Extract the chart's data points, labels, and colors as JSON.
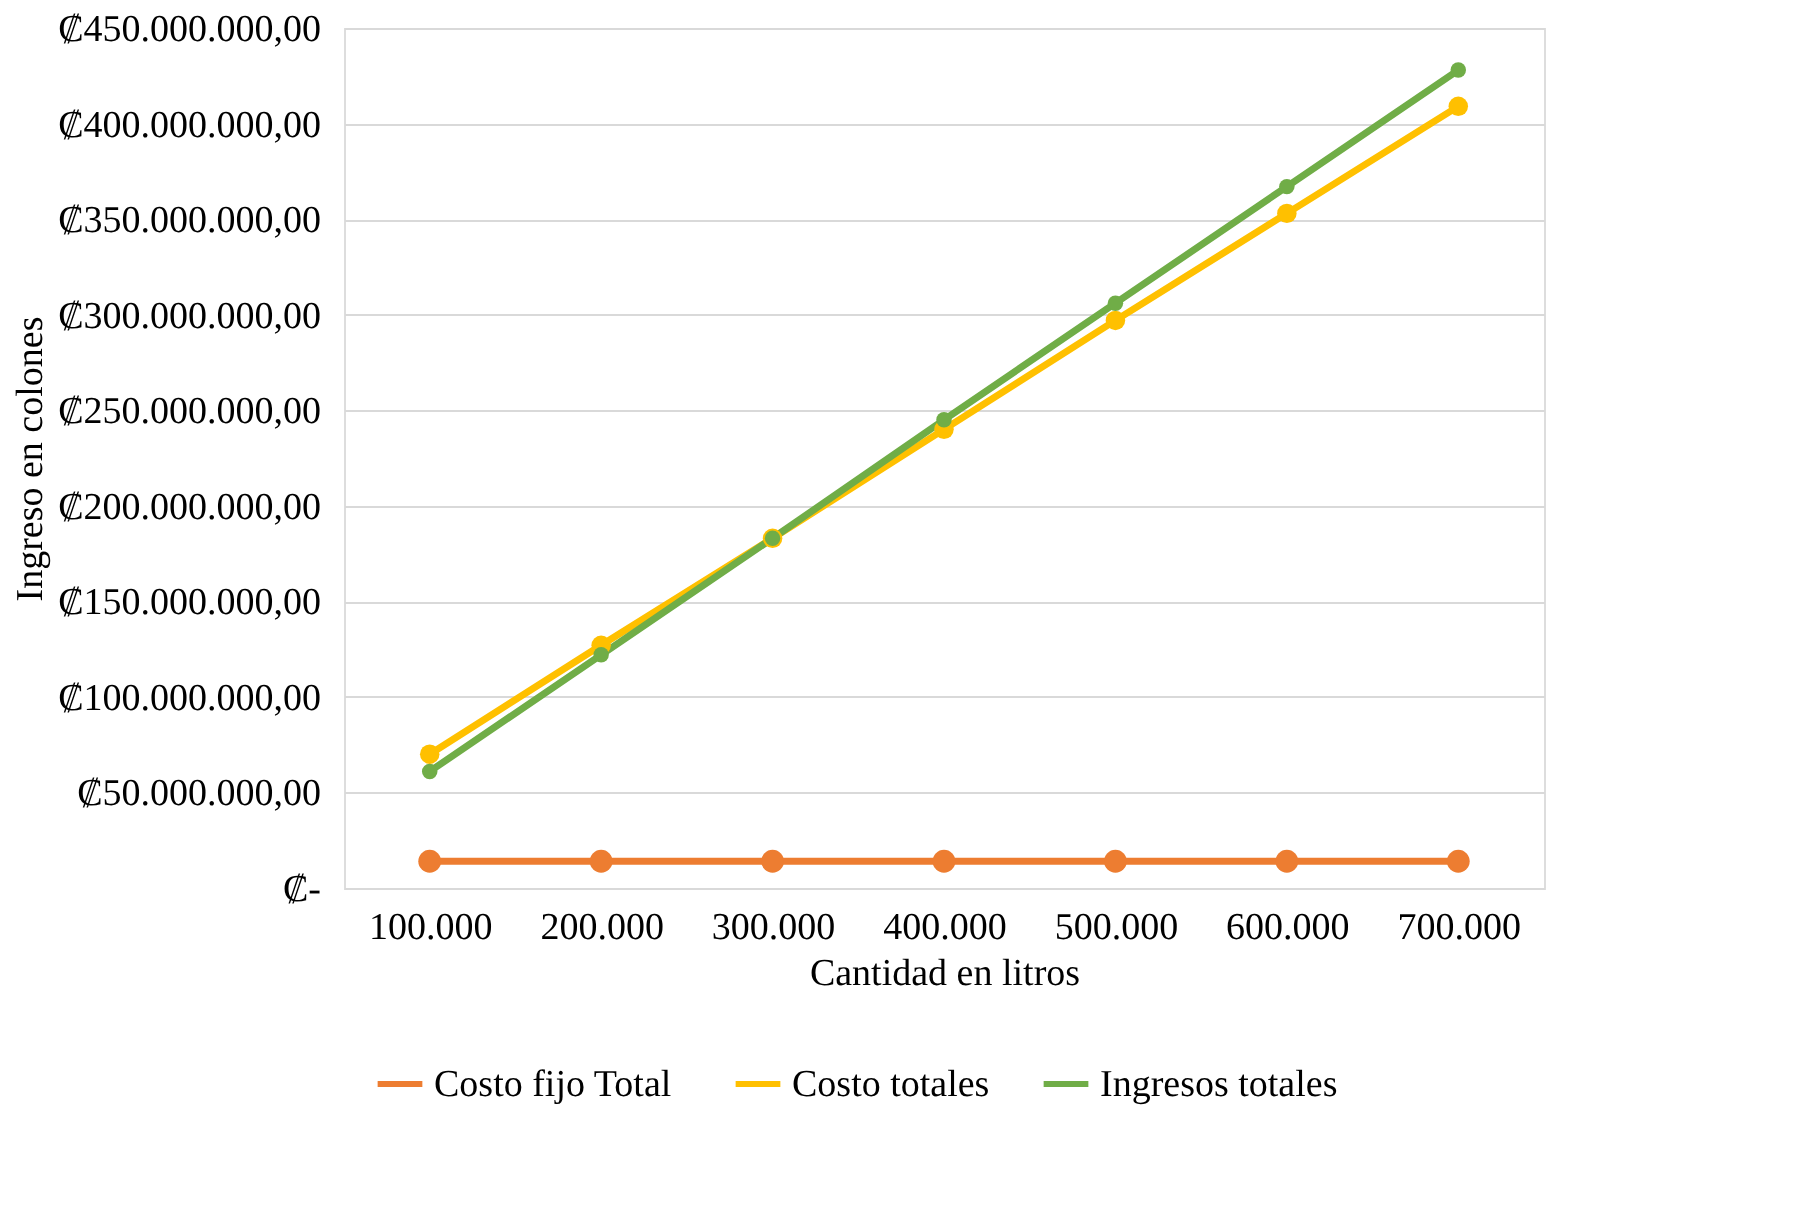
{
  "chart_data": {
    "type": "line",
    "xlabel": "Cantidad en litros",
    "ylabel": "Ingreso en colones",
    "categories": [
      "100.000",
      "200.000",
      "300.000",
      "400.000",
      "500.000",
      "600.000",
      "700.000"
    ],
    "series": [
      {
        "name": "Costo fijo  Total",
        "color": "#ed7d31",
        "values": [
          14000000,
          14000000,
          14000000,
          14000000,
          14000000,
          14000000,
          14000000
        ]
      },
      {
        "name": "Costo totales",
        "color": "#ffc000",
        "values": [
          70000000,
          127000000,
          183000000,
          240000000,
          297000000,
          353000000,
          409000000
        ]
      },
      {
        "name": "Ingresos totales",
        "color": "#70ad47",
        "values": [
          61000000,
          122000000,
          183000000,
          245000000,
          306000000,
          367000000,
          428000000
        ]
      }
    ],
    "ylim": [
      0,
      450000000
    ],
    "yticks": [
      {
        "value": 0,
        "label": "₡-"
      },
      {
        "value": 50000000,
        "label": "₡50.000.000,00"
      },
      {
        "value": 100000000,
        "label": "₡100.000.000,00"
      },
      {
        "value": 150000000,
        "label": "₡150.000.000,00"
      },
      {
        "value": 200000000,
        "label": "₡200.000.000,00"
      },
      {
        "value": 250000000,
        "label": "₡250.000.000,00"
      },
      {
        "value": 300000000,
        "label": "₡300.000.000,00"
      },
      {
        "value": 350000000,
        "label": "₡350.000.000,00"
      },
      {
        "value": 400000000,
        "label": "₡400.000.000,00"
      },
      {
        "value": 450000000,
        "label": "₡450.000.000,00"
      }
    ],
    "grid": "y",
    "legend": "bottom",
    "marker": "circle",
    "line_style": "solid"
  }
}
